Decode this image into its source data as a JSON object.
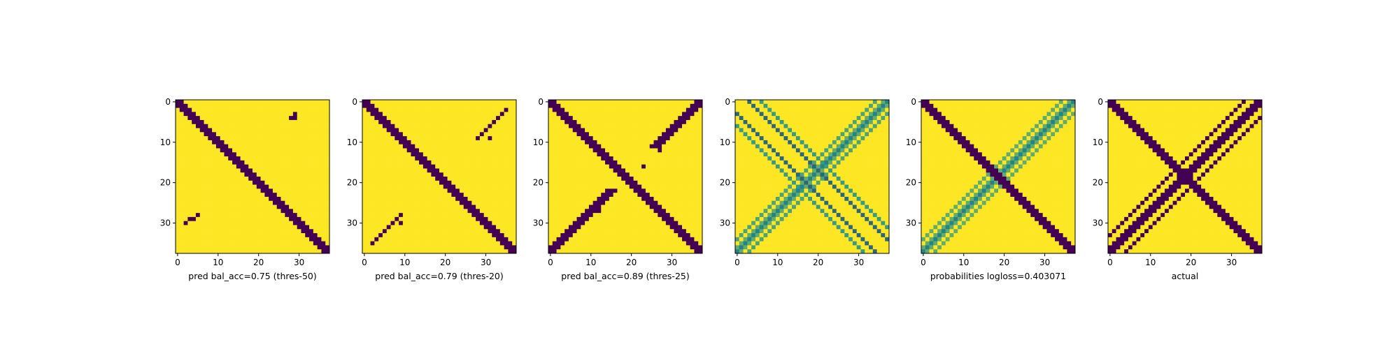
{
  "figure": {
    "background": "#ffffff",
    "colormap": {
      "name": "viridis",
      "low": "#440154",
      "mid": "#21918c",
      "high": "#fde725"
    }
  },
  "chart_data": [
    {
      "type": "heatmap",
      "xlabel": "pred bal_acc=0.75 (thres-50)",
      "grid_size": 38,
      "xticks": [
        0,
        10,
        20,
        30
      ],
      "yticks": [
        0,
        10,
        20,
        30
      ],
      "pattern": {
        "diagonals": [
          {
            "direction": "main",
            "offset": 0,
            "width": 3.0,
            "value": 0
          }
        ],
        "blobs": [
          {
            "row": 3,
            "col": 29,
            "value": 0
          },
          {
            "row": 4,
            "col": 28,
            "value": 0
          },
          {
            "row": 4,
            "col": 29,
            "value": 0
          },
          {
            "row": 28,
            "col": 5,
            "value": 0
          },
          {
            "row": 29,
            "col": 3,
            "value": 0
          },
          {
            "row": 29,
            "col": 4,
            "value": 0
          },
          {
            "row": 30,
            "col": 2,
            "value": 0
          }
        ]
      },
      "zmin": 0,
      "zmax": 1
    },
    {
      "type": "heatmap",
      "xlabel": "pred bal_acc=0.79 (thres-20)",
      "grid_size": 38,
      "xticks": [
        0,
        10,
        20,
        30
      ],
      "yticks": [
        0,
        10,
        20,
        30
      ],
      "pattern": {
        "diagonals": [
          {
            "direction": "main",
            "offset": 0,
            "width": 3.4,
            "value": 0
          },
          {
            "direction": "anti",
            "offset": 0,
            "width": 1.2,
            "value": 0,
            "from": 2,
            "to": 9,
            "region": "upper"
          },
          {
            "direction": "anti",
            "offset": 0,
            "width": 1.2,
            "value": 0,
            "from": 28,
            "to": 35,
            "region": "lower"
          }
        ],
        "blobs": [
          {
            "row": 9,
            "col": 31,
            "value": 0
          },
          {
            "row": 30,
            "col": 9,
            "value": 0
          }
        ]
      },
      "zmin": 0,
      "zmax": 1
    },
    {
      "type": "heatmap",
      "xlabel": "pred bal_acc=0.89 (thres-25)",
      "grid_size": 38,
      "xticks": [
        0,
        10,
        20,
        30
      ],
      "yticks": [
        0,
        10,
        20,
        30
      ],
      "pattern": {
        "diagonals": [
          {
            "direction": "main",
            "offset": 0,
            "width": 3.6,
            "value": 0
          },
          {
            "direction": "anti",
            "offset": 0,
            "width": 2.2,
            "value": 0,
            "from": 0,
            "to": 11,
            "region": "upper"
          },
          {
            "direction": "anti",
            "offset": 0,
            "width": 2.2,
            "value": 0,
            "from": 22,
            "to": 38,
            "region": "lower"
          }
        ],
        "blobs": [
          {
            "row": 12,
            "col": 27,
            "value": 0
          },
          {
            "row": 16,
            "col": 23,
            "value": 0
          },
          {
            "row": 23,
            "col": 14,
            "value": 0
          },
          {
            "row": 27,
            "col": 12,
            "value": 0
          },
          {
            "row": 35,
            "col": 3,
            "value": 0
          }
        ]
      },
      "zmin": 0,
      "zmax": 1
    },
    {
      "type": "heatmap",
      "xlabel": "",
      "grid_size": 38,
      "xticks": [
        0,
        10,
        20,
        30
      ],
      "yticks": [
        0,
        10,
        20,
        30
      ],
      "pattern": {
        "diagonals": [
          {
            "direction": "main",
            "offset": 3,
            "width": 0.9,
            "value": 0.35
          },
          {
            "direction": "main",
            "offset": -3,
            "width": 0.9,
            "value": 0.35
          },
          {
            "direction": "main",
            "offset": 6,
            "width": 0.7,
            "value": 0.55
          },
          {
            "direction": "main",
            "offset": -6,
            "width": 0.7,
            "value": 0.55
          },
          {
            "direction": "anti",
            "offset": 0,
            "width": 3.5,
            "value": 0.45,
            "soft": true
          },
          {
            "direction": "anti",
            "offset": 3,
            "width": 1.0,
            "value": 0.6,
            "soft": true
          },
          {
            "direction": "anti",
            "offset": -3,
            "width": 1.0,
            "value": 0.6,
            "soft": true
          }
        ],
        "blobs": []
      },
      "zmin": 0,
      "zmax": 1
    },
    {
      "type": "heatmap",
      "xlabel": "probabilities logloss=0.403071",
      "grid_size": 38,
      "xticks": [
        0,
        10,
        20,
        30
      ],
      "yticks": [
        0,
        10,
        20,
        30
      ],
      "pattern": {
        "diagonals": [
          {
            "direction": "main",
            "offset": 0,
            "width": 2.2,
            "value": 0.0
          },
          {
            "direction": "main",
            "offset": 0,
            "width": 3.6,
            "value": 0.35,
            "soft": true
          },
          {
            "direction": "anti",
            "offset": 0,
            "width": 3.5,
            "value": 0.45,
            "soft": true
          },
          {
            "direction": "anti",
            "offset": 3,
            "width": 1.0,
            "value": 0.65,
            "soft": true
          },
          {
            "direction": "anti",
            "offset": -3,
            "width": 1.0,
            "value": 0.65,
            "soft": true
          }
        ],
        "blobs": []
      },
      "zmin": 0,
      "zmax": 1
    },
    {
      "type": "heatmap",
      "xlabel": "actual",
      "grid_size": 38,
      "xticks": [
        0,
        10,
        20,
        30
      ],
      "yticks": [
        0,
        10,
        20,
        30
      ],
      "pattern": {
        "diagonals": [
          {
            "direction": "main",
            "offset": 0,
            "width": 3.2,
            "value": 0
          },
          {
            "direction": "anti",
            "offset": 0,
            "width": 2.6,
            "value": 0
          },
          {
            "direction": "anti",
            "offset": 4,
            "width": 0.9,
            "value": 0
          },
          {
            "direction": "anti",
            "offset": -4,
            "width": 0.9,
            "value": 0
          }
        ],
        "blobs": []
      },
      "zmin": 0,
      "zmax": 1
    }
  ]
}
